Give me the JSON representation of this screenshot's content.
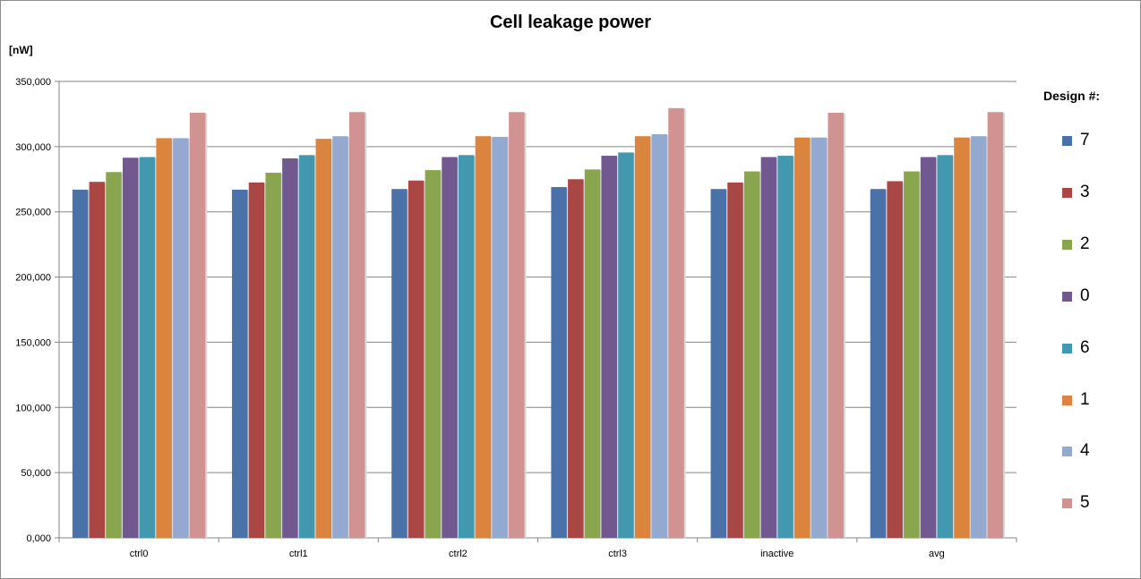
{
  "chart_data": {
    "type": "bar",
    "title": "Cell leakage power",
    "ylabel": "[nW]",
    "xlabel": "",
    "ylim": [
      0,
      350000
    ],
    "yticks": [
      "0,000",
      "50,000",
      "100,000",
      "150,000",
      "200,000",
      "250,000",
      "300,000",
      "350,000"
    ],
    "grid": true,
    "legend_title": "Design #:",
    "legend_position": "right",
    "categories": [
      "ctrl0",
      "ctrl1",
      "ctrl2",
      "ctrl3",
      "inactive",
      "avg"
    ],
    "series": [
      {
        "name": "7",
        "color": "#4a72a8",
        "values": [
          267000,
          267000,
          267500,
          269000,
          267500,
          267500
        ]
      },
      {
        "name": "3",
        "color": "#a94745",
        "values": [
          273000,
          272500,
          274000,
          275000,
          272500,
          273500
        ]
      },
      {
        "name": "2",
        "color": "#89a54e",
        "values": [
          280500,
          280000,
          282000,
          282500,
          281000,
          281000
        ]
      },
      {
        "name": "0",
        "color": "#71588f",
        "values": [
          291500,
          291000,
          292000,
          293000,
          292000,
          292000
        ]
      },
      {
        "name": "6",
        "color": "#4198af",
        "values": [
          292000,
          293500,
          293500,
          295500,
          293000,
          293500
        ]
      },
      {
        "name": "1",
        "color": "#db843d",
        "values": [
          306500,
          306000,
          308000,
          308000,
          307000,
          307000
        ]
      },
      {
        "name": "4",
        "color": "#93a9cf",
        "values": [
          306500,
          308000,
          307500,
          309500,
          307000,
          308000
        ]
      },
      {
        "name": "5",
        "color": "#d19392",
        "values": [
          326000,
          326500,
          326500,
          329500,
          326000,
          326500
        ]
      }
    ]
  }
}
